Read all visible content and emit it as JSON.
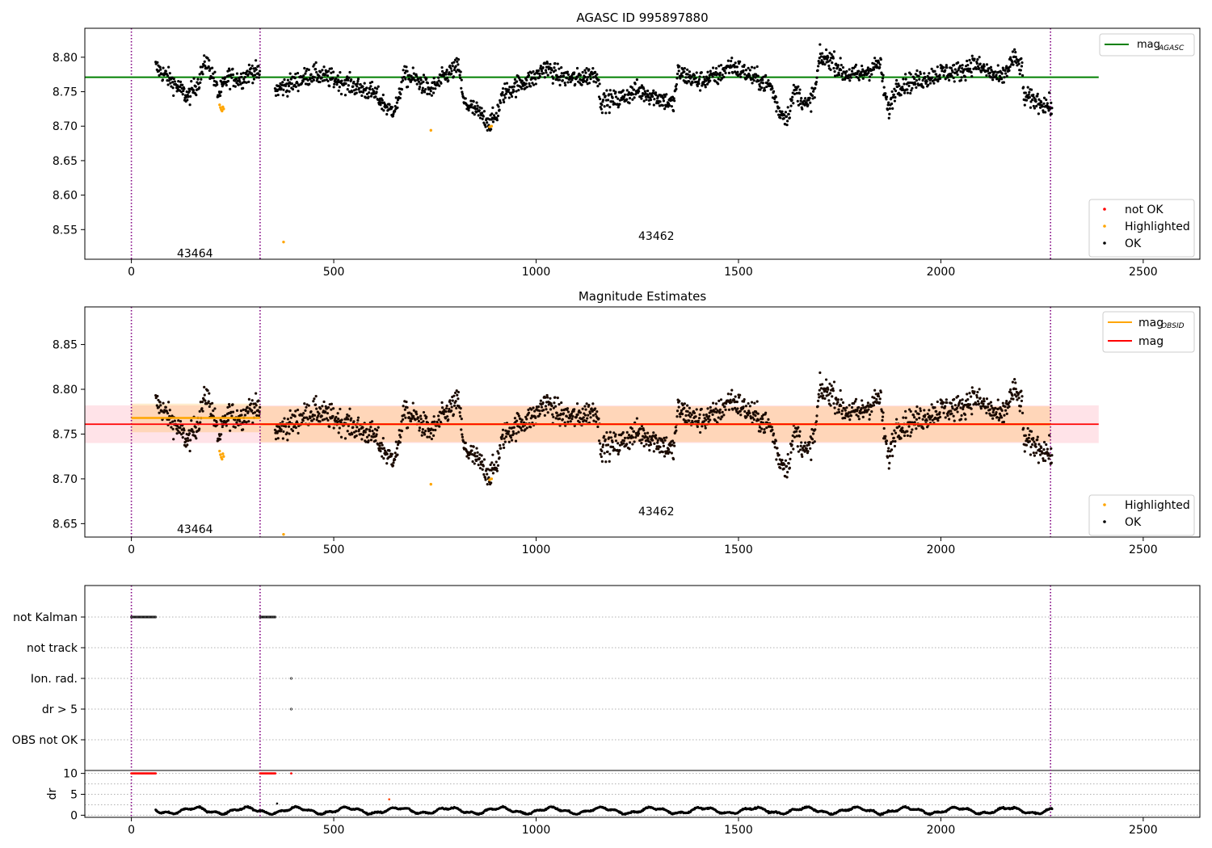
{
  "chart_data": [
    {
      "type": "scatter",
      "title": "AGASC ID 995897880",
      "x": {
        "lim": [
          -115,
          2640
        ],
        "ticks": [
          0,
          500,
          1000,
          1500,
          2000,
          2500
        ]
      },
      "y": {
        "lim": [
          8.507,
          8.842
        ],
        "ticks": [
          8.55,
          8.6,
          8.65,
          8.7,
          8.75,
          8.8
        ]
      },
      "obs_boundaries": [
        0,
        318,
        2271
      ],
      "obs_labels": [
        {
          "text": "43464",
          "x": 157,
          "y": 8.516
        },
        {
          "text": "43462",
          "x": 1297,
          "y": 8.541
        }
      ],
      "mag_agasc": {
        "value": 8.771,
        "x_range": [
          -115,
          2390
        ],
        "color": "#008000"
      },
      "ok_segments": [
        {
          "x0": 60,
          "x1": 318,
          "anchors": [
            [
              60,
              8.786
            ],
            [
              95,
              8.768
            ],
            [
              140,
              8.742
            ],
            [
              165,
              8.764
            ],
            [
              185,
              8.795
            ],
            [
              205,
              8.768
            ],
            [
              215,
              8.745
            ],
            [
              240,
              8.772
            ],
            [
              270,
              8.768
            ],
            [
              300,
              8.781
            ],
            [
              318,
              8.774
            ]
          ],
          "noise": 0.007
        },
        {
          "x0": 355,
          "x1": 2275,
          "anchors": [
            [
              355,
              8.752
            ],
            [
              400,
              8.763
            ],
            [
              450,
              8.776
            ],
            [
              500,
              8.768
            ],
            [
              560,
              8.756
            ],
            [
              600,
              8.748
            ],
            [
              640,
              8.722
            ],
            [
              660,
              8.733
            ],
            [
              670,
              8.772
            ],
            [
              700,
              8.769
            ],
            [
              740,
              8.752
            ],
            [
              780,
              8.775
            ],
            [
              810,
              8.787
            ],
            [
              820,
              8.735
            ],
            [
              850,
              8.723
            ],
            [
              885,
              8.705
            ],
            [
              900,
              8.713
            ],
            [
              920,
              8.748
            ],
            [
              960,
              8.762
            ],
            [
              1000,
              8.771
            ],
            [
              1020,
              8.786
            ],
            [
              1060,
              8.772
            ],
            [
              1100,
              8.768
            ],
            [
              1150,
              8.778
            ],
            [
              1160,
              8.736
            ],
            [
              1200,
              8.738
            ],
            [
              1250,
              8.752
            ],
            [
              1300,
              8.742
            ],
            [
              1340,
              8.731
            ],
            [
              1350,
              8.778
            ],
            [
              1400,
              8.765
            ],
            [
              1450,
              8.773
            ],
            [
              1480,
              8.789
            ],
            [
              1550,
              8.767
            ],
            [
              1580,
              8.758
            ],
            [
              1600,
              8.722
            ],
            [
              1620,
              8.713
            ],
            [
              1640,
              8.753
            ],
            [
              1670,
              8.728
            ],
            [
              1690,
              8.753
            ],
            [
              1700,
              8.798
            ],
            [
              1730,
              8.797
            ],
            [
              1760,
              8.776
            ],
            [
              1800,
              8.774
            ],
            [
              1850,
              8.791
            ],
            [
              1860,
              8.752
            ],
            [
              1870,
              8.721
            ],
            [
              1890,
              8.758
            ],
            [
              1950,
              8.767
            ],
            [
              2000,
              8.778
            ],
            [
              2050,
              8.779
            ],
            [
              2080,
              8.791
            ],
            [
              2150,
              8.768
            ],
            [
              2180,
              8.799
            ],
            [
              2200,
              8.785
            ],
            [
              2205,
              8.743
            ],
            [
              2240,
              8.736
            ],
            [
              2275,
              8.727
            ]
          ],
          "noise": 0.007
        }
      ],
      "highlighted": [
        {
          "x": 218,
          "y": 8.731
        },
        {
          "x": 220,
          "y": 8.727
        },
        {
          "x": 222,
          "y": 8.724
        },
        {
          "x": 224,
          "y": 8.722
        },
        {
          "x": 226,
          "y": 8.728
        },
        {
          "x": 228,
          "y": 8.725
        },
        {
          "x": 376,
          "y": 8.532
        },
        {
          "x": 740,
          "y": 8.694
        },
        {
          "x": 885,
          "y": 8.699
        },
        {
          "x": 890,
          "y": 8.7
        }
      ],
      "legend_top": {
        "label": "mag",
        "sub": "AGASC"
      },
      "legend_bottom": [
        {
          "label": "not OK",
          "color": "#ff0000"
        },
        {
          "label": "Highlighted",
          "color": "#ffa500"
        },
        {
          "label": "OK",
          "color": "#000000"
        }
      ]
    },
    {
      "type": "scatter",
      "title": "Magnitude Estimates",
      "x": {
        "lim": [
          -115,
          2640
        ],
        "ticks": [
          0,
          500,
          1000,
          1500,
          2000,
          2500
        ]
      },
      "y": {
        "lim": [
          8.635,
          8.892
        ],
        "ticks": [
          8.65,
          8.7,
          8.75,
          8.8,
          8.85
        ]
      },
      "obs_boundaries": [
        0,
        318,
        2271
      ],
      "obs_labels": [
        {
          "text": "43464",
          "x": 157,
          "y": 8.644
        },
        {
          "text": "43462",
          "x": 1297,
          "y": 8.664
        }
      ],
      "mag_band": {
        "center": 8.761,
        "x_range": [
          -115,
          2390
        ],
        "lo": 8.74,
        "hi": 8.782,
        "color": "#ffc0cb"
      },
      "mag_obsid": [
        {
          "x0": 0,
          "x1": 318,
          "value": 8.768,
          "lo": 8.752,
          "hi": 8.784
        },
        {
          "x0": 318,
          "x1": 2271,
          "value": 8.761,
          "lo": 8.741,
          "hi": 8.781
        }
      ],
      "highlighted": [
        {
          "x": 218,
          "y": 8.731
        },
        {
          "x": 220,
          "y": 8.727
        },
        {
          "x": 222,
          "y": 8.724
        },
        {
          "x": 224,
          "y": 8.722
        },
        {
          "x": 226,
          "y": 8.728
        },
        {
          "x": 228,
          "y": 8.725
        },
        {
          "x": 376,
          "y": 8.638
        },
        {
          "x": 740,
          "y": 8.694
        },
        {
          "x": 885,
          "y": 8.699
        },
        {
          "x": 890,
          "y": 8.7
        }
      ],
      "legend_top": [
        {
          "label": "mag",
          "sub": "OBSID",
          "color": "#ffa500"
        },
        {
          "label": "mag",
          "sub": "",
          "color": "#ff0000"
        }
      ],
      "legend_bottom": [
        {
          "label": "Highlighted",
          "color": "#ffa500"
        },
        {
          "label": "OK",
          "color": "#000000"
        }
      ]
    },
    {
      "type": "scatter",
      "title": "",
      "x": {
        "lim": [
          -115,
          2640
        ],
        "ticks": [
          0,
          500,
          1000,
          1500,
          2000,
          2500
        ]
      },
      "obs_boundaries": [
        0,
        318,
        2271
      ],
      "flag_rows": [
        "not Kalman",
        "not track",
        "Ion. rad.",
        "dr > 5",
        "OBS not OK"
      ],
      "flag_points": [
        {
          "row": "not Kalman",
          "x0": 0,
          "x1": 60,
          "step": 2.5
        },
        {
          "row": "not Kalman",
          "x0": 318,
          "x1": 357,
          "step": 2.5
        },
        {
          "row": "Ion. rad.",
          "x0": 395,
          "x1": 395,
          "step": 1
        },
        {
          "row": "dr > 5",
          "x0": 395,
          "x1": 395,
          "step": 1
        }
      ],
      "dr": {
        "ylabel": "dr",
        "ylim": [
          -0.5,
          10.7
        ],
        "ticks": [
          0,
          5,
          10
        ],
        "capped": [
          {
            "x0": 0,
            "x1": 60,
            "value": 10
          },
          {
            "x0": 318,
            "x1": 357,
            "value": 10
          },
          {
            "x0": 395,
            "x1": 395,
            "value": 10
          }
        ],
        "outliers": [
          {
            "x": 360,
            "y": 2.8
          },
          {
            "x": 637,
            "y": 3.8
          }
        ],
        "base": {
          "x0": 60,
          "x1": 2275,
          "mean": 1.1,
          "amp": 0.65
        }
      }
    }
  ]
}
